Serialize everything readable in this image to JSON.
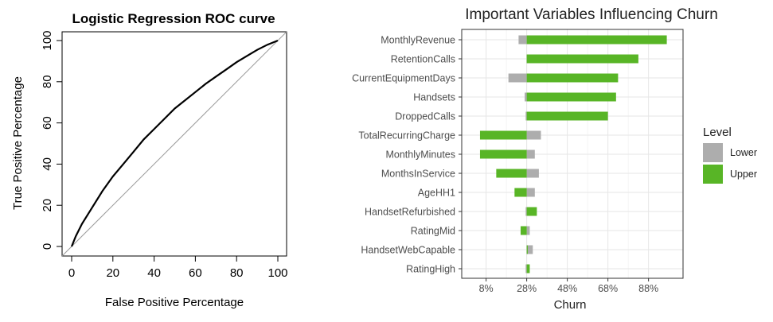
{
  "chart_data": [
    {
      "type": "line",
      "title": "Logistic Regression ROC curve",
      "xlabel": "False Positive Percentage",
      "ylabel": "True Positive Percentage",
      "xlim": [
        0,
        100
      ],
      "ylim": [
        0,
        100
      ],
      "xticks": [
        "0",
        "20",
        "40",
        "60",
        "80",
        "100"
      ],
      "yticks": [
        "0",
        "20",
        "40",
        "60",
        "80",
        "100"
      ],
      "grid": false,
      "colors": {
        "curve": "#000000",
        "diagonal": "#9a9a9a"
      },
      "series": [
        {
          "x": [
            0,
            2,
            5,
            10,
            15,
            20,
            25,
            30,
            35,
            40,
            45,
            50,
            55,
            60,
            65,
            70,
            75,
            80,
            85,
            90,
            95,
            100
          ],
          "y": [
            0,
            5,
            11,
            19,
            27,
            34,
            40,
            46,
            52,
            57,
            62,
            67,
            71,
            75,
            79,
            82.5,
            86,
            89.5,
            92.5,
            95.5,
            98,
            100
          ]
        }
      ]
    },
    {
      "type": "bar",
      "orientation": "horizontal",
      "title": "Important Variables Influencing Churn",
      "xlabel": "Churn",
      "ylabel": "",
      "xlim": [
        -4,
        105
      ],
      "baseline": 28,
      "xticks": [
        "8%",
        "28%",
        "48%",
        "68%",
        "88%"
      ],
      "xtick_values": [
        8,
        28,
        48,
        68,
        88
      ],
      "grid": true,
      "legend": {
        "title": "Level",
        "position": "right",
        "entries": [
          {
            "label": "Lower",
            "color": "#adadad"
          },
          {
            "label": "Upper",
            "color": "#58b526"
          }
        ]
      },
      "categories": [
        "MonthlyRevenue",
        "RetentionCalls",
        "CurrentEquipmentDays",
        "Handsets",
        "DroppedCalls",
        "TotalRecurringCharge",
        "MonthlyMinutes",
        "MonthsInService",
        "AgeHH1",
        "HandsetRefurbished",
        "RatingMid",
        "HandsetWebCapable",
        "RatingHigh"
      ],
      "series": [
        {
          "name": "Lower",
          "values": [
            24,
            28,
            19,
            27,
            27.5,
            35,
            32,
            34,
            32,
            27.5,
            29.5,
            31,
            27.5
          ]
        },
        {
          "name": "Upper",
          "values": [
            97,
            83,
            73,
            72,
            68,
            5,
            5,
            13,
            22,
            33,
            25,
            28.5,
            29.5
          ]
        }
      ]
    }
  ]
}
